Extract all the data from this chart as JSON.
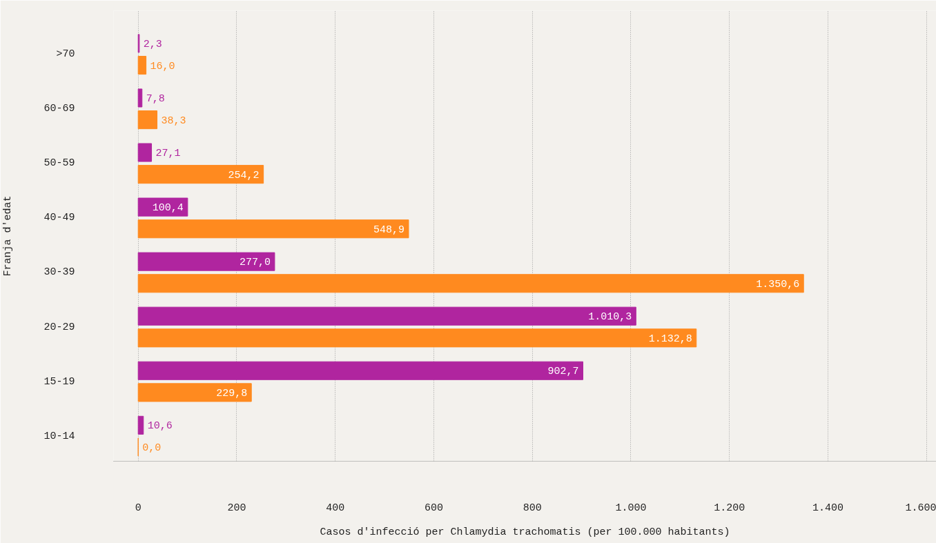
{
  "chart_data": {
    "type": "bar",
    "orientation": "horizontal",
    "xlabel": "Casos d'infecció per Chlamydia trachomatis (per 100.000 habitants)",
    "ylabel": "Franja d'edat",
    "categories": [
      ">70",
      "60-69",
      "50-59",
      "40-49",
      "30-39",
      "20-29",
      "15-19",
      "10-14"
    ],
    "series": [
      {
        "color": "#b0259f",
        "values": [
          2.3,
          7.8,
          27.1,
          100.4,
          277.0,
          1010.3,
          902.7,
          10.6
        ],
        "value_labels": [
          "2,3",
          "7,8",
          "27,1",
          "100,4",
          "277,0",
          "1.010,3",
          "902,7",
          "10,6"
        ]
      },
      {
        "color": "#ff8a1f",
        "values": [
          16.0,
          38.3,
          254.2,
          548.9,
          1350.6,
          1132.8,
          229.8,
          0.0
        ],
        "value_labels": [
          "16,0",
          "38,3",
          "254,2",
          "548,9",
          "1.350,6",
          "1.132,8",
          "229,8",
          "0,0"
        ]
      }
    ],
    "xlim": [
      -50,
      1620
    ],
    "xticks": [
      0,
      200,
      400,
      600,
      800,
      {
        "value": 1000,
        "label": "1.000"
      },
      {
        "value": 1200,
        "label": "1.200"
      },
      {
        "value": 1400,
        "label": "1.400"
      },
      {
        "value": 1600,
        "label": "1.600"
      }
    ],
    "grid": "x"
  }
}
